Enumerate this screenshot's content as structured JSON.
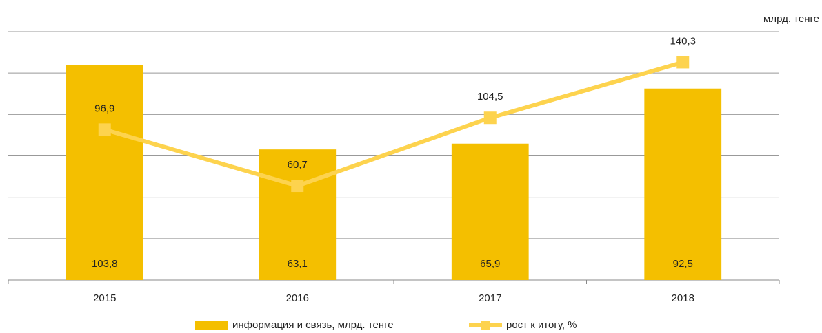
{
  "chart_data": {
    "type": "bar_line",
    "ylabel": "млрд. тенге",
    "categories": [
      "2015",
      "2016",
      "2017",
      "2018"
    ],
    "series": [
      {
        "name": "информация и связь, млрд. тенге",
        "type": "bar",
        "color": "#f4bf00",
        "values": [
          103.8,
          63.1,
          65.9,
          92.5
        ],
        "value_labels": [
          "103,8",
          "63,1",
          "65,9",
          "92,5"
        ]
      },
      {
        "name": "рост к итогу, %",
        "type": "line",
        "axis": "y2",
        "color": "#fdd34e",
        "values": [
          96.9,
          60.7,
          104.5,
          140.3
        ],
        "value_labels": [
          "96,9",
          "60,7",
          "104,5",
          "140,3"
        ]
      }
    ],
    "ylim": [
      0,
      120
    ],
    "yticks": [
      0,
      20,
      40,
      60,
      80,
      100,
      120
    ],
    "y2lim": [
      0,
      160
    ],
    "grid": true,
    "legend": "bottom"
  }
}
